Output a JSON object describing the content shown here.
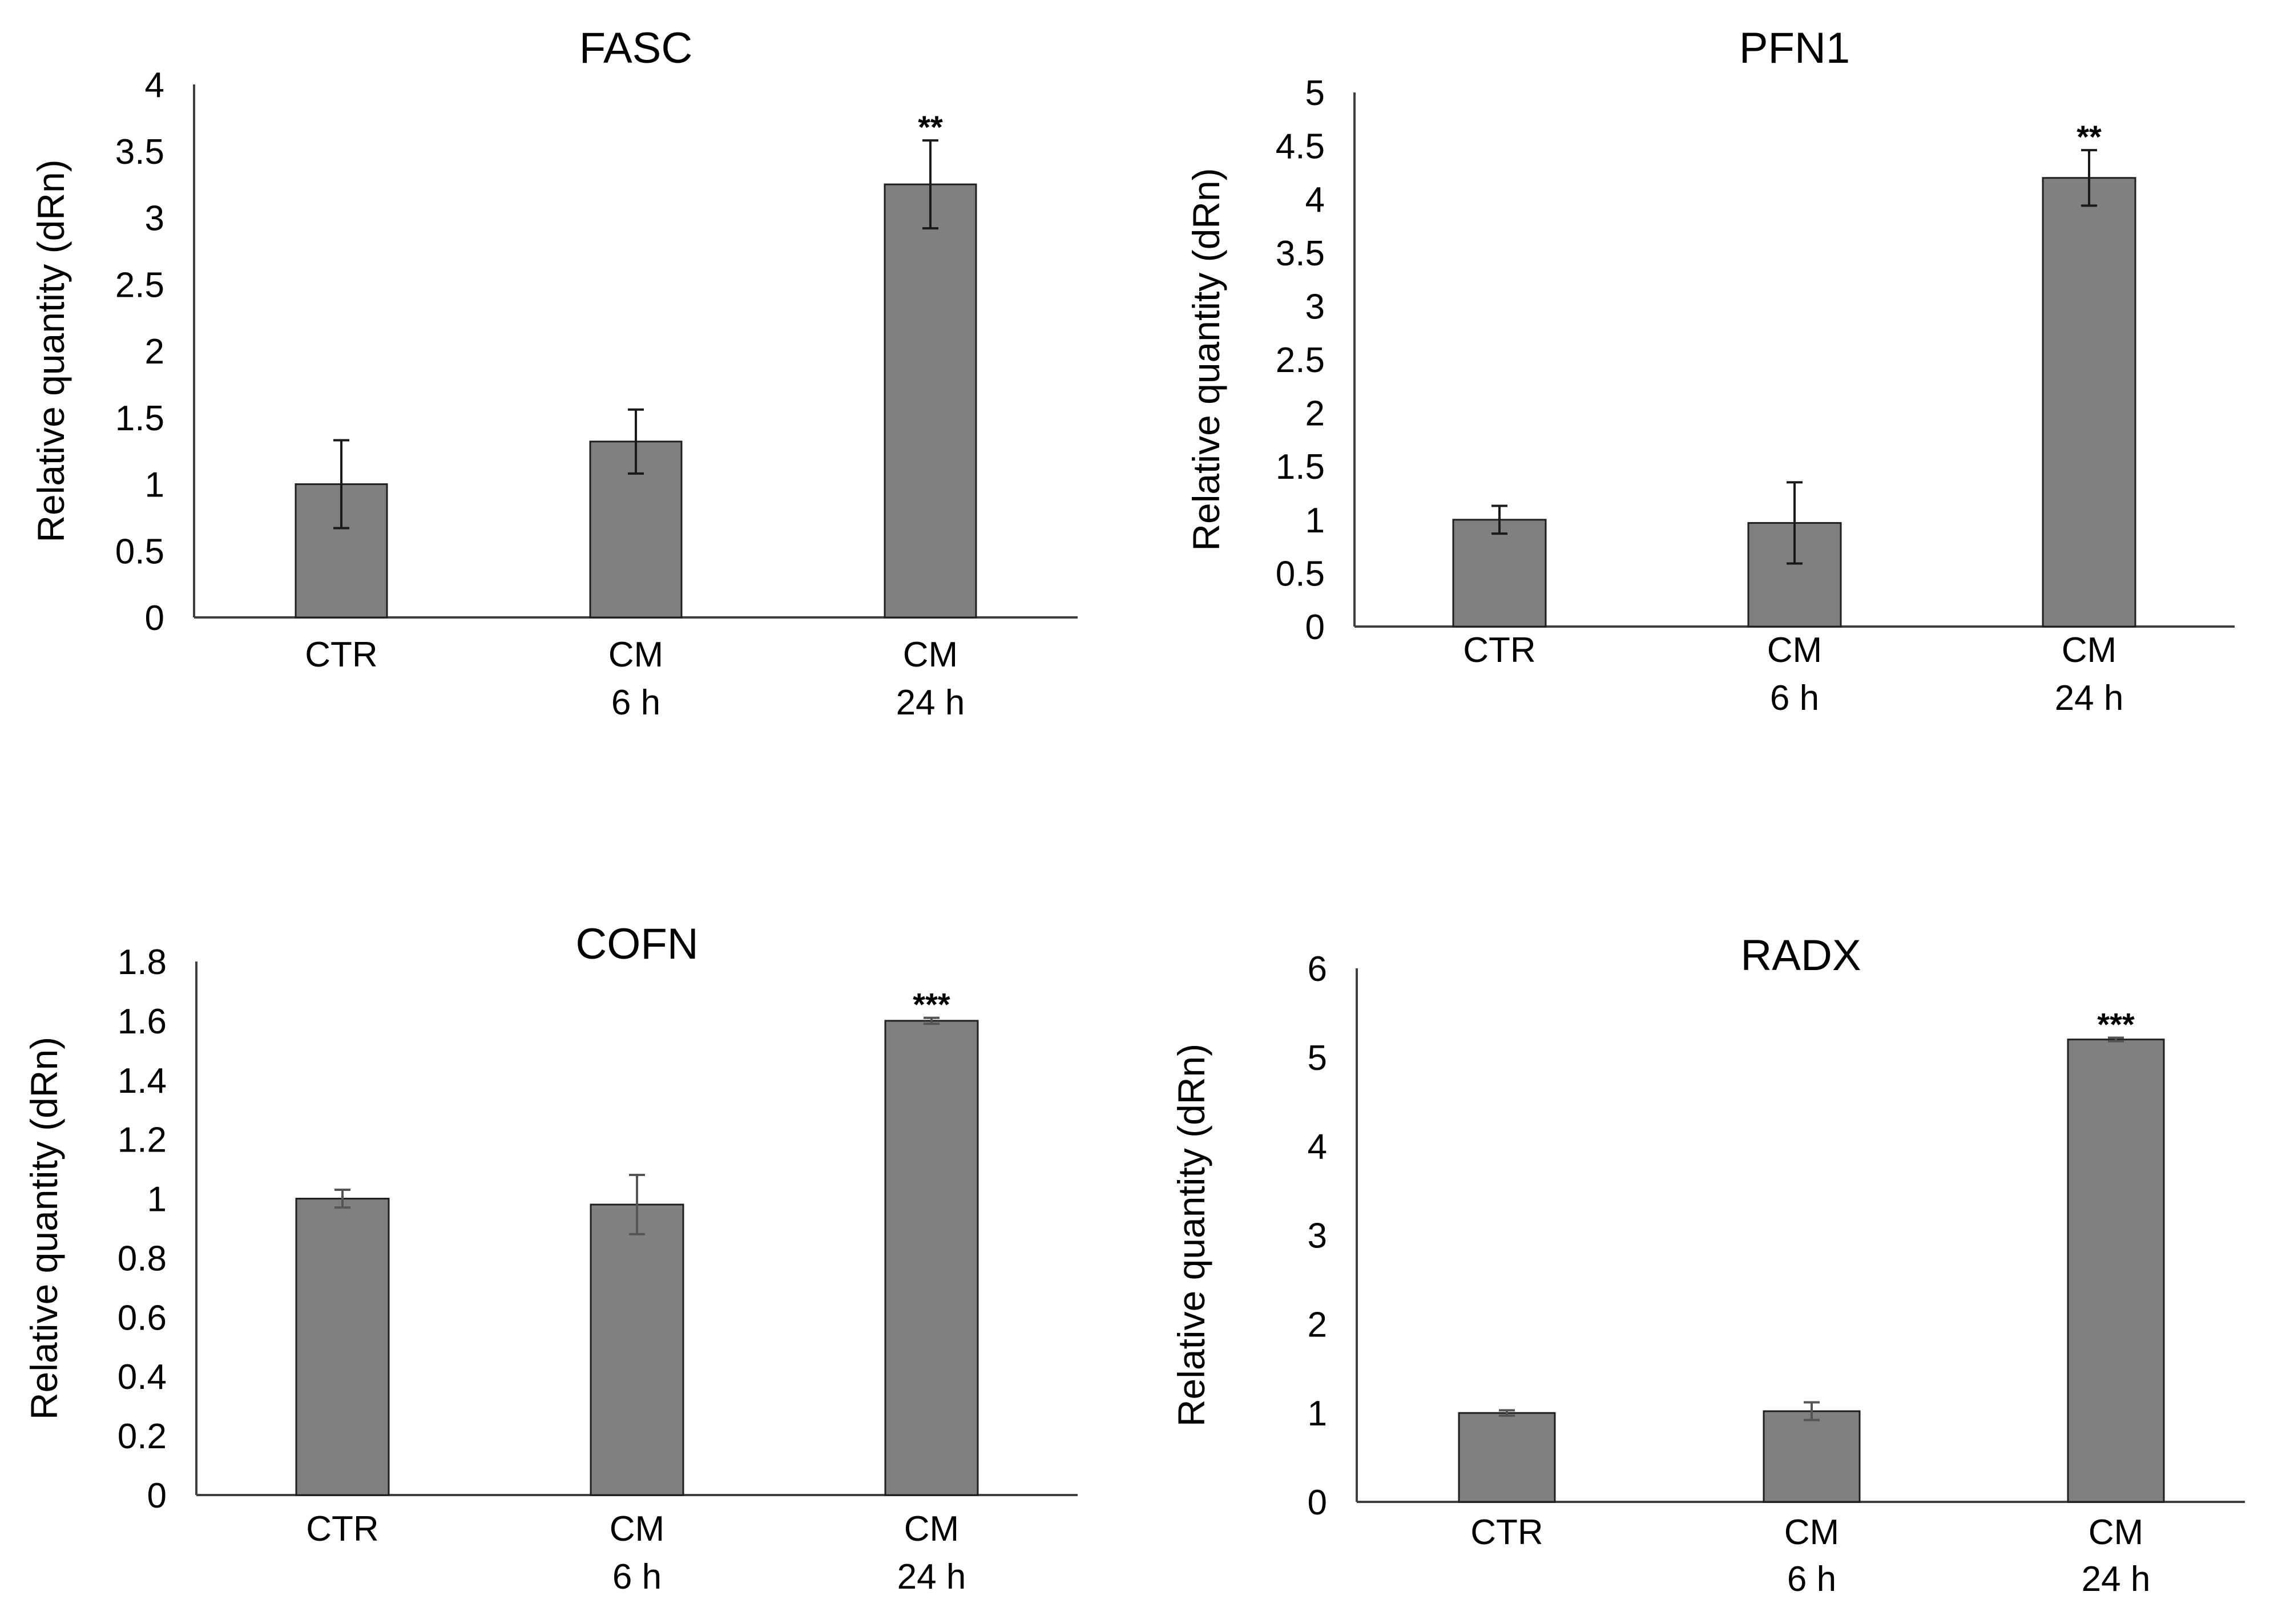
{
  "colors": {
    "bar_fill": "#808080",
    "bar_stroke": "#1f1f1f",
    "axis": "#404040",
    "text": "#000000",
    "error_bar": "#1a1a1a",
    "error_bar_light": "#555555"
  },
  "chart_data": [
    {
      "type": "bar",
      "title": "FASC",
      "ylabel": "Relative quantity (dRn)",
      "xlabel": "",
      "ylim": [
        0,
        4
      ],
      "ytick_labels": [
        "0",
        "0.5",
        "1",
        "1.5",
        "2",
        "2.5",
        "3",
        "3.5",
        "4"
      ],
      "categories": [
        [
          "CTR"
        ],
        [
          "CM",
          "6 h"
        ],
        [
          "CM",
          "24 h"
        ]
      ],
      "values": [
        1.0,
        1.32,
        3.25
      ],
      "errors": [
        0.33,
        0.24,
        0.33
      ],
      "annotations": [
        "",
        "",
        "**"
      ]
    },
    {
      "type": "bar",
      "title": "PFN1",
      "ylabel": "Relative quantity (dRn)",
      "xlabel": "",
      "ylim": [
        0,
        5
      ],
      "ytick_labels": [
        "0",
        "0.5",
        "1",
        "1.5",
        "2",
        "2.5",
        "3",
        "3.5",
        "4",
        "4.5",
        "5"
      ],
      "categories": [
        [
          "CTR"
        ],
        [
          "CM",
          "6 h"
        ],
        [
          "CM",
          "24 h"
        ]
      ],
      "values": [
        1.0,
        0.97,
        4.2
      ],
      "errors": [
        0.13,
        0.38,
        0.26
      ],
      "annotations": [
        "",
        "",
        "**"
      ]
    },
    {
      "type": "bar",
      "title": "COFN",
      "ylabel": "Relative quantity (dRn)",
      "xlabel": "",
      "ylim": [
        0,
        1.8
      ],
      "ytick_labels": [
        "0",
        "0.2",
        "0.4",
        "0.6",
        "0.8",
        "1",
        "1.2",
        "1.4",
        "1.6",
        "1.8"
      ],
      "categories": [
        [
          "CTR"
        ],
        [
          "CM",
          "6 h"
        ],
        [
          "CM",
          "24 h"
        ]
      ],
      "values": [
        1.0,
        0.98,
        1.6
      ],
      "errors": [
        0.03,
        0.1,
        0.01
      ],
      "annotations": [
        "",
        "",
        "***"
      ]
    },
    {
      "type": "bar",
      "title": "RADX",
      "ylabel": "Relative quantity (dRn)",
      "xlabel": "",
      "ylim": [
        0,
        6
      ],
      "ytick_labels": [
        "0",
        "1",
        "2",
        "3",
        "4",
        "5",
        "6"
      ],
      "categories": [
        [
          "CTR"
        ],
        [
          "CM",
          "6 h"
        ],
        [
          "CM",
          "24 h"
        ]
      ],
      "values": [
        1.0,
        1.02,
        5.2
      ],
      "errors": [
        0.03,
        0.1,
        0.02
      ],
      "annotations": [
        "",
        "",
        "***"
      ]
    }
  ]
}
